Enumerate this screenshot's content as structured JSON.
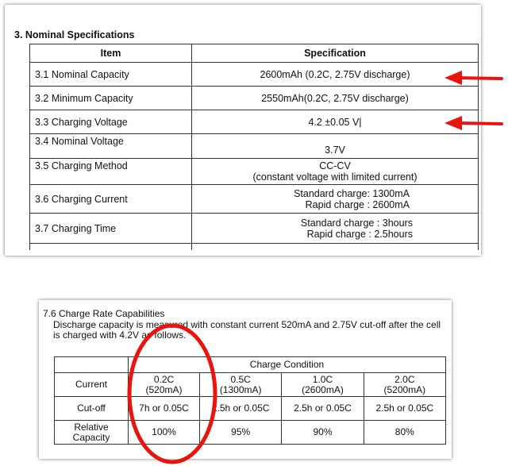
{
  "spec_section": {
    "title": "3. Nominal Specifications",
    "headers": {
      "item": "Item",
      "spec": "Specification"
    },
    "rows": [
      {
        "item": "3.1 Nominal Capacity",
        "spec": [
          "2600mAh (0.2C, 2.75V discharge)"
        ]
      },
      {
        "item": "3.2 Minimum Capacity",
        "spec": [
          "2550mAh(0.2C, 2.75V discharge)"
        ]
      },
      {
        "item": "3.3 Charging Voltage",
        "spec": [
          "4.2 ±0.05 V|"
        ]
      },
      {
        "item": "3.4 Nominal Voltage",
        "spec": [
          "3.7V"
        ]
      },
      {
        "item": "3.5 Charging Method",
        "spec": [
          "CC-CV",
          "(constant voltage with limited current)"
        ]
      },
      {
        "item": "3.6 Charging Current",
        "spec": [
          "Standard charge: 1300mA",
          "Rapid charge : 2600mA"
        ]
      },
      {
        "item": "3.7 Charging Time",
        "spec": [
          "Standard charge : 3hours",
          "Rapid charge : 2.5hours"
        ]
      }
    ]
  },
  "rate_section": {
    "title": "7.6 Charge Rate Capabilities",
    "description": "Discharge capacity is measured with constant current 520mA and 2.75V cut-off after the cell is charged with 4.2V as follows.",
    "group_header": "Charge Condition",
    "rows": [
      {
        "label": "Current",
        "cells": [
          [
            "0.2C",
            "(520mA)"
          ],
          [
            "0.5C",
            "(1300mA)"
          ],
          [
            "1.0C",
            "(2600mA)"
          ],
          [
            "2.0C",
            "(5200mA)"
          ]
        ]
      },
      {
        "label": "Cut-off",
        "cells": [
          [
            "7h or 0.05C"
          ],
          [
            "2.5h or 0.05C"
          ],
          [
            "2.5h or 0.05C"
          ],
          [
            "2.5h or 0.05C"
          ]
        ]
      },
      {
        "label": [
          "Relative",
          "Capacity"
        ],
        "cells": [
          [
            "100%"
          ],
          [
            "95%"
          ],
          [
            "90%"
          ],
          [
            "80%"
          ]
        ]
      }
    ]
  },
  "annotations": {
    "arrow_color": "#e8150f",
    "circle_color": "#e8150f"
  }
}
